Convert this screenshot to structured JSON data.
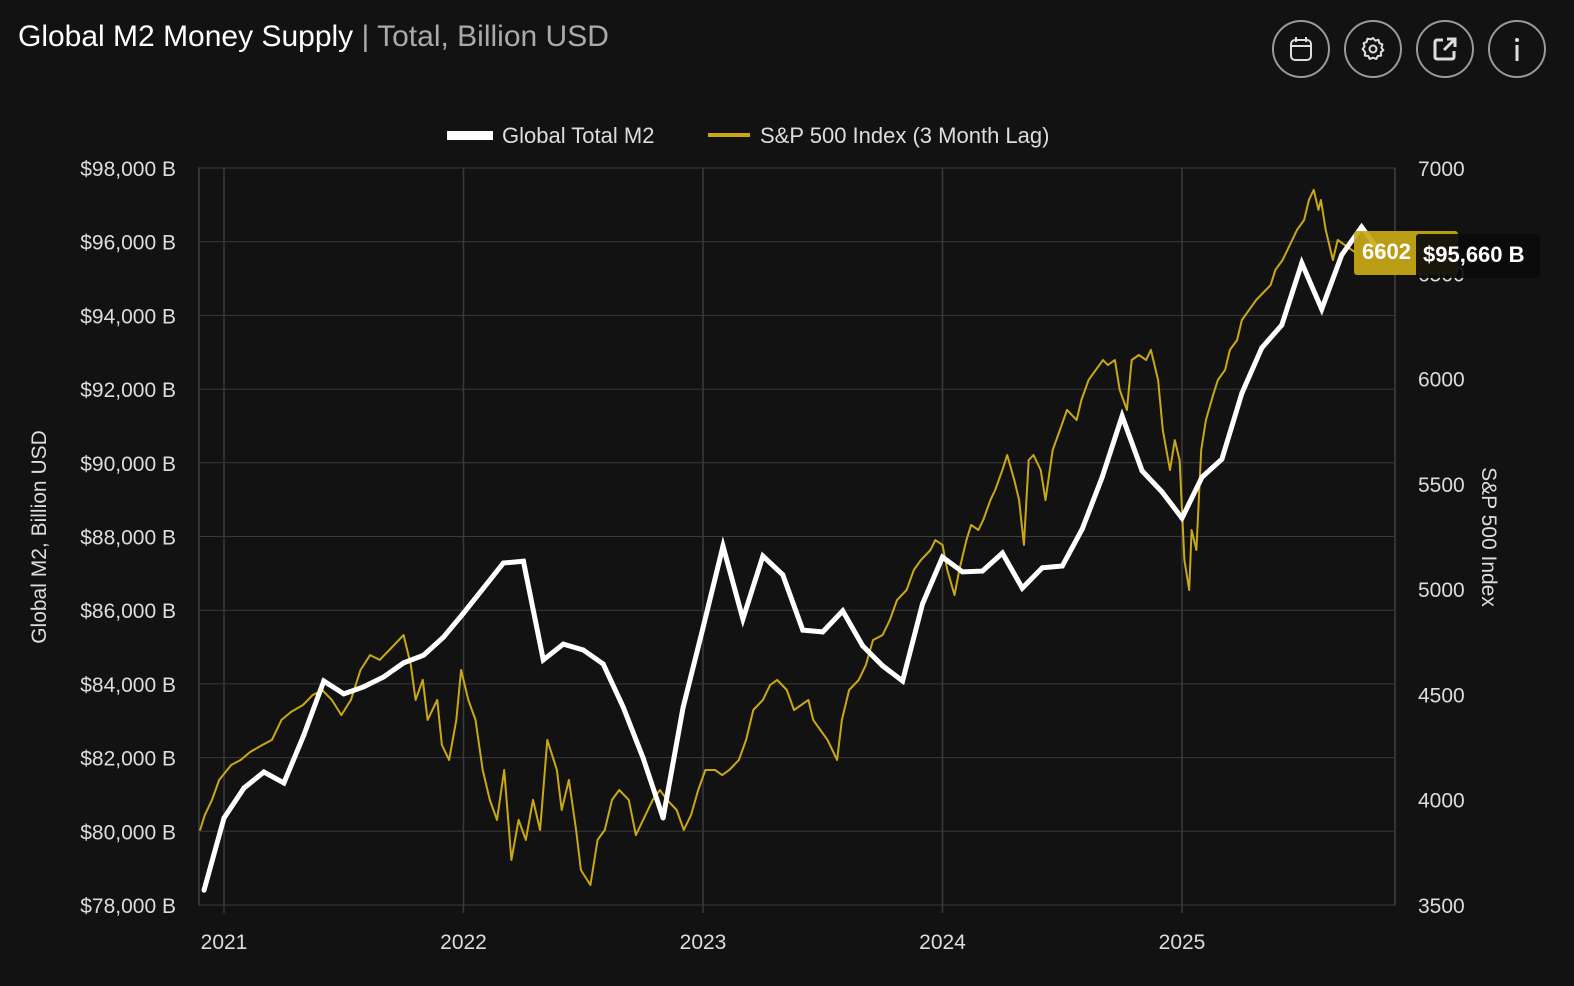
{
  "header": {
    "title": "Global M2 Money Supply",
    "separator": "|",
    "subtitle": "Total, Billion USD",
    "buttons": [
      {
        "icon": "calendar-icon"
      },
      {
        "icon": "gear-icon"
      },
      {
        "icon": "external-link-icon"
      },
      {
        "icon": "info-icon"
      }
    ]
  },
  "chart_data": {
    "type": "line",
    "legend": {
      "placement": "top-center",
      "entries": [
        "Global Total M2",
        "S&P 500 Index (3 Month Lag)"
      ]
    },
    "xlabel": "",
    "x_ticks": [
      "2021",
      "2022",
      "2023",
      "2024",
      "2025"
    ],
    "y_left": {
      "label": "Global M2, Billion USD",
      "range": [
        78000,
        98000
      ],
      "ticks": [
        "$78,000 B",
        "$80,000 B",
        "$82,000 B",
        "$84,000 B",
        "$86,000 B",
        "$88,000 B",
        "$90,000 B",
        "$92,000 B",
        "$94,000 B",
        "$96,000 B",
        "$98,000 B"
      ]
    },
    "y_right": {
      "label": "S&P 500 Index",
      "range": [
        3500,
        7000
      ],
      "ticks": [
        "3500",
        "4000",
        "4500",
        "5000",
        "5500",
        "6000",
        "6500",
        "7000"
      ]
    },
    "grid": true,
    "colors": {
      "m2": "#ffffff",
      "sp500": "#c9a816",
      "background": "#121212",
      "grid": "#3a3a3a"
    },
    "series": [
      {
        "name": "Global Total M2",
        "axis": "left",
        "dates": [
          "2020-12",
          "2021-01",
          "2021-02",
          "2021-03",
          "2021-04",
          "2021-05",
          "2021-06",
          "2021-07",
          "2021-08",
          "2021-09",
          "2021-10",
          "2021-11",
          "2021-12",
          "2022-01",
          "2022-02",
          "2022-03",
          "2022-04",
          "2022-05",
          "2022-06",
          "2022-07",
          "2022-08",
          "2022-09",
          "2022-10",
          "2022-11",
          "2022-12",
          "2023-01",
          "2023-02",
          "2023-03",
          "2023-04",
          "2023-05",
          "2023-06",
          "2023-07",
          "2023-08",
          "2023-09",
          "2023-10",
          "2023-11",
          "2023-12",
          "2024-01",
          "2024-02",
          "2024-03",
          "2024-04",
          "2024-05",
          "2024-06",
          "2024-07",
          "2024-08",
          "2024-09",
          "2024-10",
          "2024-11",
          "2024-12",
          "2025-01",
          "2025-02",
          "2025-03",
          "2025-04",
          "2025-05",
          "2025-06",
          "2025-07",
          "2025-08",
          "2025-09",
          "2025-10",
          "2025-11"
        ],
        "values": [
          78400,
          80360,
          81175,
          81610,
          81310,
          82610,
          84080,
          83730,
          83920,
          84190,
          84570,
          84780,
          85270,
          85920,
          86600,
          87280,
          87330,
          84650,
          85080,
          84920,
          84540,
          83370,
          81990,
          80360,
          83350,
          85520,
          87740,
          85760,
          87470,
          86960,
          85460,
          85410,
          85980,
          85030,
          84490,
          84080,
          86170,
          87440,
          87040,
          87060,
          87550,
          86600,
          87150,
          87200,
          88200,
          89610,
          91270,
          89780,
          89210,
          88500,
          89610,
          90100,
          91890,
          93120,
          93740,
          95420,
          94170,
          95640,
          96400,
          95660
        ]
      },
      {
        "name": "S&P 500 Index (3 Month Lag)",
        "axis": "right",
        "points": [
          [
            2020.9,
            3856
          ],
          [
            2020.92,
            3927
          ],
          [
            2020.95,
            3999
          ],
          [
            2020.98,
            4094
          ],
          [
            2021.03,
            4165
          ],
          [
            2021.07,
            4189
          ],
          [
            2021.11,
            4227
          ],
          [
            2021.16,
            4260
          ],
          [
            2021.2,
            4284
          ],
          [
            2021.24,
            4379
          ],
          [
            2021.28,
            4417
          ],
          [
            2021.33,
            4450
          ],
          [
            2021.37,
            4497
          ],
          [
            2021.41,
            4521
          ],
          [
            2021.45,
            4474
          ],
          [
            2021.49,
            4402
          ],
          [
            2021.53,
            4474
          ],
          [
            2021.57,
            4616
          ],
          [
            2021.61,
            4687
          ],
          [
            2021.65,
            4664
          ],
          [
            2021.69,
            4711
          ],
          [
            2021.73,
            4758
          ],
          [
            2021.75,
            4782
          ],
          [
            2021.78,
            4640
          ],
          [
            2021.8,
            4474
          ],
          [
            2021.83,
            4569
          ],
          [
            2021.85,
            4379
          ],
          [
            2021.89,
            4474
          ],
          [
            2021.91,
            4260
          ],
          [
            2021.94,
            4189
          ],
          [
            2021.97,
            4379
          ],
          [
            2021.99,
            4616
          ],
          [
            2022.02,
            4474
          ],
          [
            2022.05,
            4379
          ],
          [
            2022.08,
            4141
          ],
          [
            2022.11,
            3999
          ],
          [
            2022.14,
            3904
          ],
          [
            2022.17,
            4141
          ],
          [
            2022.2,
            3714
          ],
          [
            2022.23,
            3904
          ],
          [
            2022.26,
            3809
          ],
          [
            2022.29,
            3999
          ],
          [
            2022.32,
            3856
          ],
          [
            2022.35,
            4284
          ],
          [
            2022.39,
            4141
          ],
          [
            2022.41,
            3951
          ],
          [
            2022.44,
            4094
          ],
          [
            2022.47,
            3856
          ],
          [
            2022.49,
            3666
          ],
          [
            2022.53,
            3595
          ],
          [
            2022.56,
            3809
          ],
          [
            2022.59,
            3856
          ],
          [
            2022.62,
            3999
          ],
          [
            2022.65,
            4046
          ],
          [
            2022.69,
            3999
          ],
          [
            2022.72,
            3832
          ],
          [
            2022.75,
            3904
          ],
          [
            2022.79,
            3999
          ],
          [
            2022.82,
            4046
          ],
          [
            2022.85,
            3999
          ],
          [
            2022.89,
            3951
          ],
          [
            2022.92,
            3856
          ],
          [
            2022.95,
            3927
          ],
          [
            2022.98,
            4046
          ],
          [
            2023.01,
            4141
          ],
          [
            2023.05,
            4141
          ],
          [
            2023.08,
            4117
          ],
          [
            2023.11,
            4141
          ],
          [
            2023.15,
            4189
          ],
          [
            2023.18,
            4284
          ],
          [
            2023.21,
            4426
          ],
          [
            2023.25,
            4474
          ],
          [
            2023.28,
            4545
          ],
          [
            2023.31,
            4569
          ],
          [
            2023.35,
            4521
          ],
          [
            2023.38,
            4426
          ],
          [
            2023.41,
            4450
          ],
          [
            2023.44,
            4474
          ],
          [
            2023.46,
            4379
          ],
          [
            2023.49,
            4331
          ],
          [
            2023.52,
            4284
          ],
          [
            2023.56,
            4189
          ],
          [
            2023.58,
            4379
          ],
          [
            2023.61,
            4521
          ],
          [
            2023.65,
            4569
          ],
          [
            2023.68,
            4640
          ],
          [
            2023.71,
            4758
          ],
          [
            2023.75,
            4782
          ],
          [
            2023.78,
            4853
          ],
          [
            2023.81,
            4948
          ],
          [
            2023.85,
            4996
          ],
          [
            2023.88,
            5091
          ],
          [
            2023.91,
            5138
          ],
          [
            2023.95,
            5186
          ],
          [
            2023.97,
            5233
          ],
          [
            2024.0,
            5210
          ],
          [
            2024.02,
            5091
          ],
          [
            2024.05,
            4972
          ],
          [
            2024.07,
            5091
          ],
          [
            2024.1,
            5233
          ],
          [
            2024.12,
            5305
          ],
          [
            2024.15,
            5281
          ],
          [
            2024.17,
            5328
          ],
          [
            2024.2,
            5423
          ],
          [
            2024.22,
            5471
          ],
          [
            2024.25,
            5566
          ],
          [
            2024.27,
            5637
          ],
          [
            2024.3,
            5518
          ],
          [
            2024.32,
            5423
          ],
          [
            2024.34,
            5210
          ],
          [
            2024.36,
            5613
          ],
          [
            2024.38,
            5637
          ],
          [
            2024.41,
            5566
          ],
          [
            2024.43,
            5423
          ],
          [
            2024.46,
            5661
          ],
          [
            2024.49,
            5756
          ],
          [
            2024.52,
            5851
          ],
          [
            2024.56,
            5803
          ],
          [
            2024.58,
            5898
          ],
          [
            2024.61,
            5993
          ],
          [
            2024.64,
            6041
          ],
          [
            2024.67,
            6088
          ],
          [
            2024.69,
            6064
          ],
          [
            2024.72,
            6088
          ],
          [
            2024.74,
            5946
          ],
          [
            2024.77,
            5851
          ],
          [
            2024.79,
            6088
          ],
          [
            2024.82,
            6112
          ],
          [
            2024.85,
            6088
          ],
          [
            2024.87,
            6136
          ],
          [
            2024.9,
            5993
          ],
          [
            2024.92,
            5756
          ],
          [
            2024.95,
            5566
          ],
          [
            2024.97,
            5708
          ],
          [
            2024.99,
            5613
          ],
          [
            2025.01,
            5138
          ],
          [
            2025.03,
            4996
          ],
          [
            2025.04,
            5281
          ],
          [
            2025.06,
            5186
          ],
          [
            2025.08,
            5661
          ],
          [
            2025.1,
            5803
          ],
          [
            2025.13,
            5922
          ],
          [
            2025.15,
            5993
          ],
          [
            2025.18,
            6041
          ],
          [
            2025.2,
            6136
          ],
          [
            2025.23,
            6183
          ],
          [
            2025.25,
            6278
          ],
          [
            2025.28,
            6326
          ],
          [
            2025.31,
            6373
          ],
          [
            2025.33,
            6397
          ],
          [
            2025.37,
            6444
          ],
          [
            2025.39,
            6516
          ],
          [
            2025.42,
            6563
          ],
          [
            2025.46,
            6658
          ],
          [
            2025.48,
            6706
          ],
          [
            2025.51,
            6753
          ],
          [
            2025.53,
            6848
          ],
          [
            2025.55,
            6896
          ],
          [
            2025.57,
            6801
          ],
          [
            2025.58,
            6848
          ],
          [
            2025.6,
            6706
          ],
          [
            2025.63,
            6563
          ],
          [
            2025.65,
            6658
          ],
          [
            2025.72,
            6602
          ]
        ]
      }
    ],
    "annotations": {
      "sp500_last": "6602",
      "m2_last": "$95,660 B"
    }
  }
}
